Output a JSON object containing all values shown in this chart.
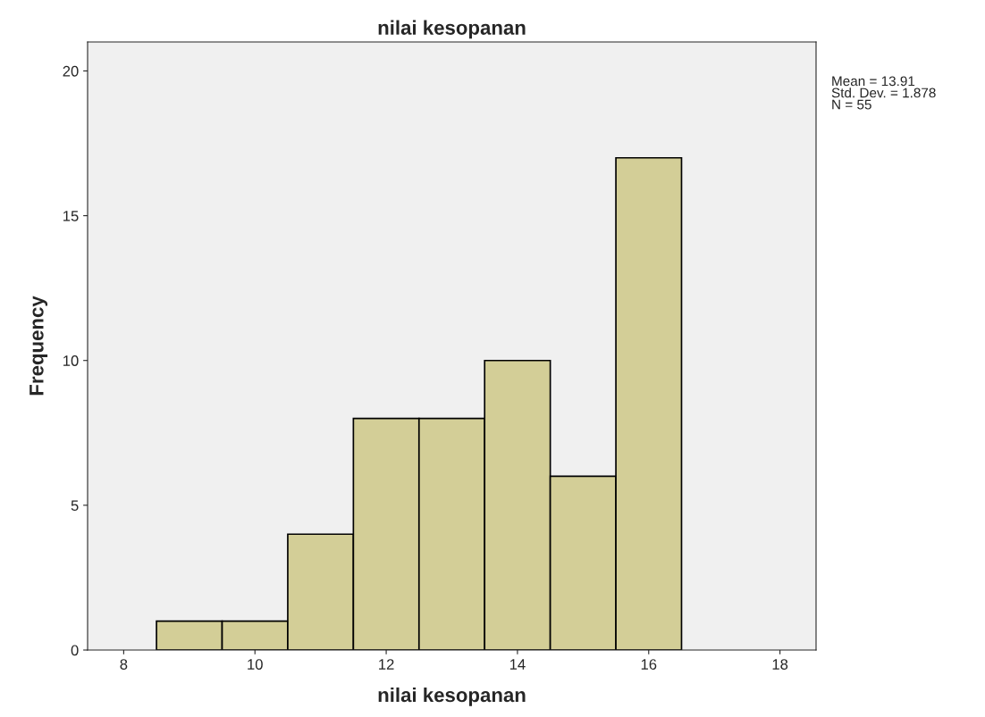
{
  "chart_data": {
    "type": "histogram",
    "title": "nilai kesopanan",
    "xlabel": "nilai kesopanan",
    "ylabel": "Frequency",
    "bins": [
      8.5,
      9.5,
      10.5,
      11.5,
      12.5,
      13.5,
      14.5,
      15.5,
      16.5
    ],
    "values": [
      1,
      1,
      4,
      8,
      8,
      10,
      6,
      17
    ],
    "color": "#d3ce97",
    "xlim": [
      7.45,
      18.55
    ],
    "xticks": [
      8,
      10,
      12,
      14,
      16,
      18
    ],
    "ylim": [
      0,
      21
    ],
    "yticks": [
      0,
      5,
      10,
      15,
      20
    ],
    "annotations": [
      "Mean = 13.91\nStd. Dev. = 1.878\nN = 55"
    ]
  }
}
